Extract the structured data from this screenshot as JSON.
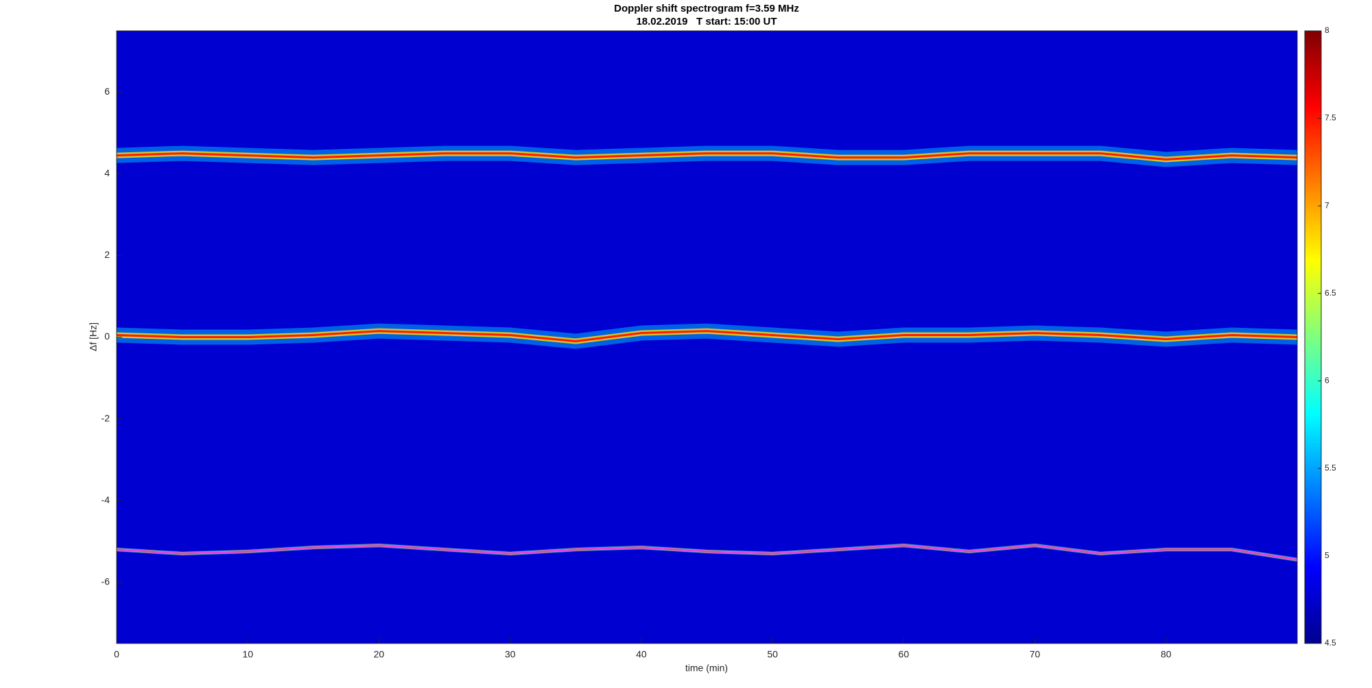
{
  "chart_data": {
    "type": "spectrogram",
    "title": "Doppler shift spectrogram f=3.59 MHz",
    "subtitle": "18.02.2019   T start: 15:00 UT",
    "x_label": "time (min)",
    "y_label": "Δf [Hz]",
    "x": [
      0,
      5,
      10,
      15,
      20,
      25,
      30,
      35,
      40,
      45,
      50,
      55,
      60,
      65,
      70,
      75,
      80,
      85,
      90
    ],
    "series": [
      {
        "color": "#ff1a00",
        "values": [
          4.45,
          4.5,
          4.45,
          4.4,
          4.45,
          4.5,
          4.5,
          4.4,
          4.45,
          4.5,
          4.5,
          4.4,
          4.4,
          4.5,
          4.5,
          4.5,
          4.35,
          4.45,
          4.4
        ]
      },
      {
        "color": "#ff1a00",
        "values": [
          0.05,
          0.0,
          0.0,
          0.05,
          0.15,
          0.1,
          0.05,
          -0.1,
          0.1,
          0.15,
          0.05,
          -0.05,
          0.05,
          0.05,
          0.1,
          0.05,
          -0.05,
          0.05,
          0.0
        ]
      },
      {
        "color": "#e040e0",
        "values": [
          -5.2,
          -5.3,
          -5.25,
          -5.15,
          -5.1,
          -5.2,
          -5.3,
          -5.2,
          -5.15,
          -5.25,
          -5.3,
          -5.2,
          -5.1,
          -5.25,
          -5.1,
          -5.3,
          -5.2,
          -5.2,
          -5.45
        ]
      }
    ],
    "xlim": [
      0,
      90
    ],
    "xticks": [
      0,
      10,
      20,
      30,
      40,
      50,
      60,
      70,
      80
    ],
    "ylim": [
      -7.5,
      7.5
    ],
    "yticks": [
      -6,
      -4,
      -2,
      0,
      2,
      4,
      6
    ],
    "clim": [
      4.5,
      8
    ],
    "cticks": [
      4.5,
      5,
      5.5,
      6,
      6.5,
      7,
      7.5,
      8
    ],
    "colormap": "jet"
  }
}
